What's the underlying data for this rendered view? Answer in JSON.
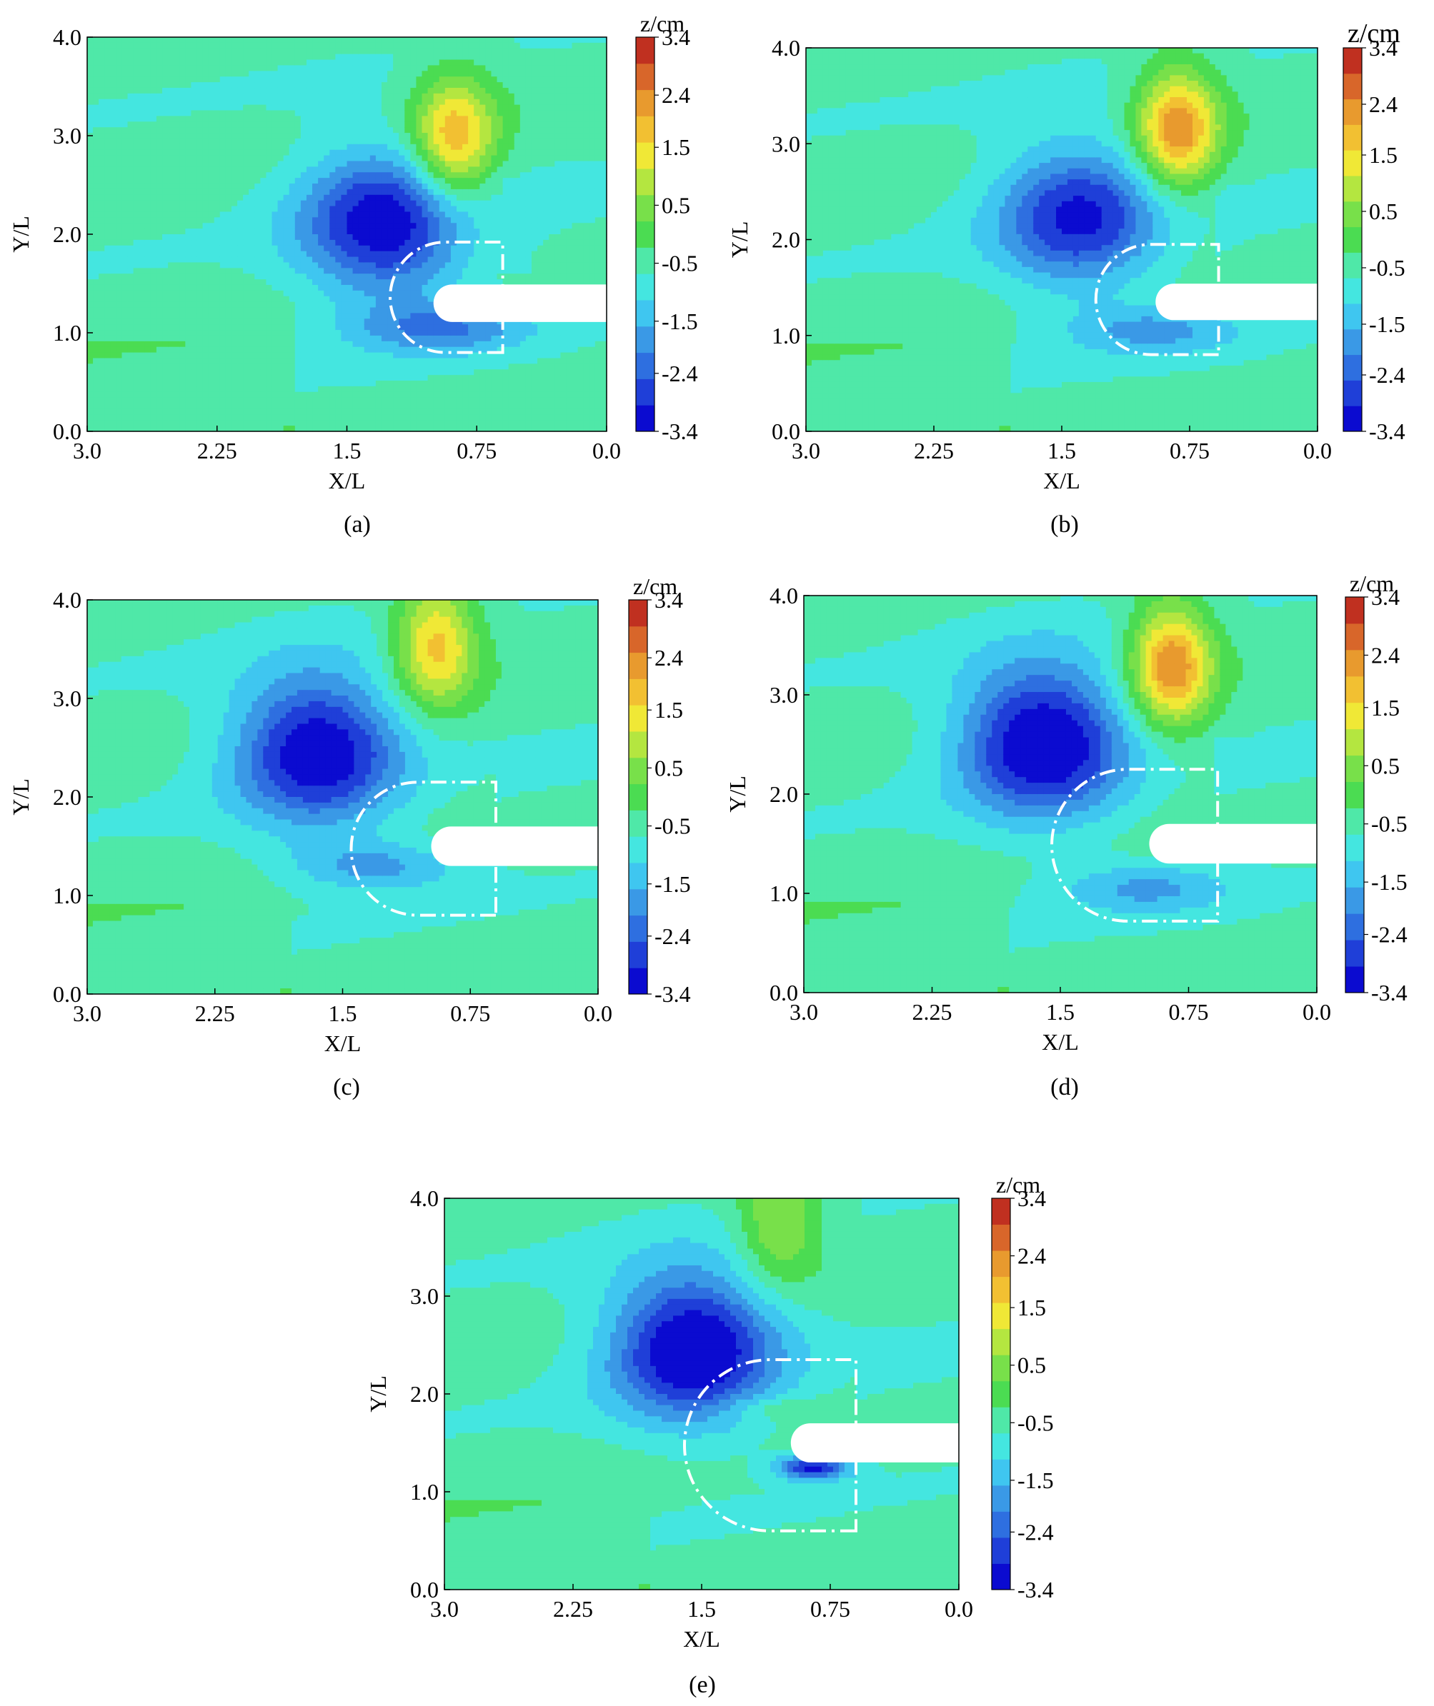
{
  "figure": {
    "levels": [
      -3.4,
      -2.9,
      -2.4,
      -2.0,
      -1.5,
      -1.0,
      -0.5,
      0.0,
      0.5,
      1.0,
      1.5,
      2.0,
      2.4,
      2.9,
      3.4
    ],
    "colormap": [
      "#0b0bd0",
      "#1f3fd8",
      "#2e6fe0",
      "#3a99e6",
      "#3fc6f0",
      "#44e6e0",
      "#4fe8a8",
      "#4bdc52",
      "#78e04a",
      "#b4e640",
      "#f0e836",
      "#f2c032",
      "#e89a2e",
      "#d8662a",
      "#c03020"
    ],
    "dashed_outline_color": "#ffffff",
    "structure_color": "#ffffff"
  },
  "chart_data": [
    {
      "type": "heatmap",
      "panel_label": "(a)",
      "xlabel": "X/L",
      "ylabel": "Y/L",
      "colorbar_title": "z/cm",
      "xlim": [
        3.0,
        0.0
      ],
      "ylim": [
        0.0,
        4.0
      ],
      "x_ticks": [
        "3.0",
        "2.25",
        "1.5",
        "0.75",
        "0.0"
      ],
      "y_ticks": [
        "0.0",
        "1.0",
        "2.0",
        "3.0",
        "4.0"
      ],
      "colorbar_ticks": [
        "3.4",
        "2.4",
        "1.5",
        "0.5",
        "-0.5",
        "-1.5",
        "-2.4",
        "-3.4"
      ],
      "zlim": [
        -3.4,
        3.4
      ],
      "structure": {
        "x_tip": 1.0,
        "y_center": 1.3,
        "half_width": 0.19
      },
      "scour_outline": {
        "x_left": 1.25,
        "x_right": 0.6,
        "y_bottom": 0.8,
        "y_top": 1.92
      },
      "features": [
        {
          "kind": "scour-hole",
          "x": 1.28,
          "y": 2.1,
          "z_min": -2.9
        },
        {
          "kind": "deposition",
          "x": 0.88,
          "y": 2.95,
          "z_max": 2.9
        },
        {
          "kind": "scour-band",
          "x": 0.95,
          "y": 1.05,
          "z_min": -1.5
        }
      ]
    },
    {
      "type": "heatmap",
      "panel_label": "(b)",
      "xlabel": "X/L",
      "ylabel": "Y/L",
      "colorbar_title": "z/cm",
      "xlim": [
        3.0,
        0.0
      ],
      "ylim": [
        0.0,
        4.0
      ],
      "x_ticks": [
        "3.0",
        "2.25",
        "1.5",
        "0.75",
        "0.0"
      ],
      "y_ticks": [
        "0.0",
        "1.0",
        "2.0",
        "3.0",
        "4.0"
      ],
      "colorbar_ticks": [
        "3.4",
        "2.4",
        "1.5",
        "0.5",
        "-0.5",
        "-1.5",
        "-2.4",
        "-3.4"
      ],
      "zlim": [
        -3.4,
        3.4
      ],
      "structure": {
        "x_tip": 0.95,
        "y_center": 1.35,
        "half_width": 0.19
      },
      "scour_outline": {
        "x_left": 1.3,
        "x_right": 0.58,
        "y_bottom": 0.8,
        "y_top": 1.95
      },
      "features": [
        {
          "kind": "scour-hole",
          "x": 1.4,
          "y": 2.25,
          "z_min": -2.6
        },
        {
          "kind": "deposition",
          "x": 0.82,
          "y": 3.15,
          "z_max": 3.2
        },
        {
          "kind": "scour-band",
          "x": 0.95,
          "y": 1.05,
          "z_min": -1.2
        }
      ]
    },
    {
      "type": "heatmap",
      "panel_label": "(c)",
      "xlabel": "X/L",
      "ylabel": "Y/L",
      "colorbar_title": "z/cm",
      "xlim": [
        3.0,
        0.0
      ],
      "ylim": [
        0.0,
        4.0
      ],
      "x_ticks": [
        "3.0",
        "2.25",
        "1.5",
        "0.75",
        "0.0"
      ],
      "y_ticks": [
        "0.0",
        "1.0",
        "2.0",
        "3.0",
        "4.0"
      ],
      "colorbar_ticks": [
        "3.4",
        "2.4",
        "1.5",
        "0.5",
        "-0.5",
        "-1.5",
        "-2.4",
        "-3.4"
      ],
      "zlim": [
        -3.4,
        3.4
      ],
      "structure": {
        "x_tip": 0.98,
        "y_center": 1.5,
        "half_width": 0.2
      },
      "scour_outline": {
        "x_left": 1.45,
        "x_right": 0.6,
        "y_bottom": 0.8,
        "y_top": 2.15
      },
      "features": [
        {
          "kind": "scour-hole",
          "x": 1.65,
          "y": 2.5,
          "z_min": -3.1
        },
        {
          "kind": "deposition",
          "x": 0.95,
          "y": 3.55,
          "z_max": 2.6
        },
        {
          "kind": "scour-band",
          "x": 1.3,
          "y": 1.3,
          "z_min": -1.3
        }
      ]
    },
    {
      "type": "heatmap",
      "panel_label": "(d)",
      "xlabel": "X/L",
      "ylabel": "Y/L",
      "colorbar_title": "z/cm",
      "xlim": [
        3.0,
        0.0
      ],
      "ylim": [
        0.0,
        4.0
      ],
      "x_ticks": [
        "3.0",
        "2.25",
        "1.5",
        "0.75",
        "0.0"
      ],
      "y_ticks": [
        "0.0",
        "1.0",
        "2.0",
        "3.0",
        "4.0"
      ],
      "colorbar_ticks": [
        "3.4",
        "2.4",
        "1.5",
        "0.5",
        "-0.5",
        "-1.5",
        "-2.4",
        "-3.4"
      ],
      "zlim": [
        -3.4,
        3.4
      ],
      "structure": {
        "x_tip": 0.98,
        "y_center": 1.5,
        "half_width": 0.2
      },
      "scour_outline": {
        "x_left": 1.55,
        "x_right": 0.58,
        "y_bottom": 0.72,
        "y_top": 2.25
      },
      "features": [
        {
          "kind": "scour-hole",
          "x": 1.6,
          "y": 2.55,
          "z_min": -3.3
        },
        {
          "kind": "deposition",
          "x": 0.85,
          "y": 3.3,
          "z_max": 3.2
        },
        {
          "kind": "scour-band",
          "x": 1.0,
          "y": 1.05,
          "z_min": -1.2
        }
      ]
    },
    {
      "type": "heatmap",
      "panel_label": "(e)",
      "xlabel": "X/L",
      "ylabel": "Y/L",
      "colorbar_title": "z/cm",
      "xlim": [
        3.0,
        0.0
      ],
      "ylim": [
        0.0,
        4.0
      ],
      "x_ticks": [
        "3.0",
        "2.25",
        "1.5",
        "0.75",
        "0.0"
      ],
      "y_ticks": [
        "0.0",
        "1.0",
        "2.0",
        "3.0",
        "4.0"
      ],
      "colorbar_ticks": [
        "3.4",
        "2.4",
        "1.5",
        "0.5",
        "-0.5",
        "-1.5",
        "-2.4",
        "-3.4"
      ],
      "zlim": [
        -3.4,
        3.4
      ],
      "structure": {
        "x_tip": 0.98,
        "y_center": 1.5,
        "half_width": 0.2
      },
      "scour_outline": {
        "x_left": 1.6,
        "x_right": 0.6,
        "y_bottom": 0.6,
        "y_top": 2.35
      },
      "features": [
        {
          "kind": "scour-hole",
          "x": 1.55,
          "y": 2.5,
          "z_min": -3.3
        },
        {
          "kind": "deposition",
          "x": 1.05,
          "y": 3.75,
          "z_max": 1.6
        },
        {
          "kind": "scour-pocket",
          "x": 0.85,
          "y": 1.25,
          "z_min": -2.7
        },
        {
          "kind": "deposition-ridge",
          "x": 1.1,
          "y": 1.85,
          "z_max": 0.6
        }
      ]
    }
  ]
}
